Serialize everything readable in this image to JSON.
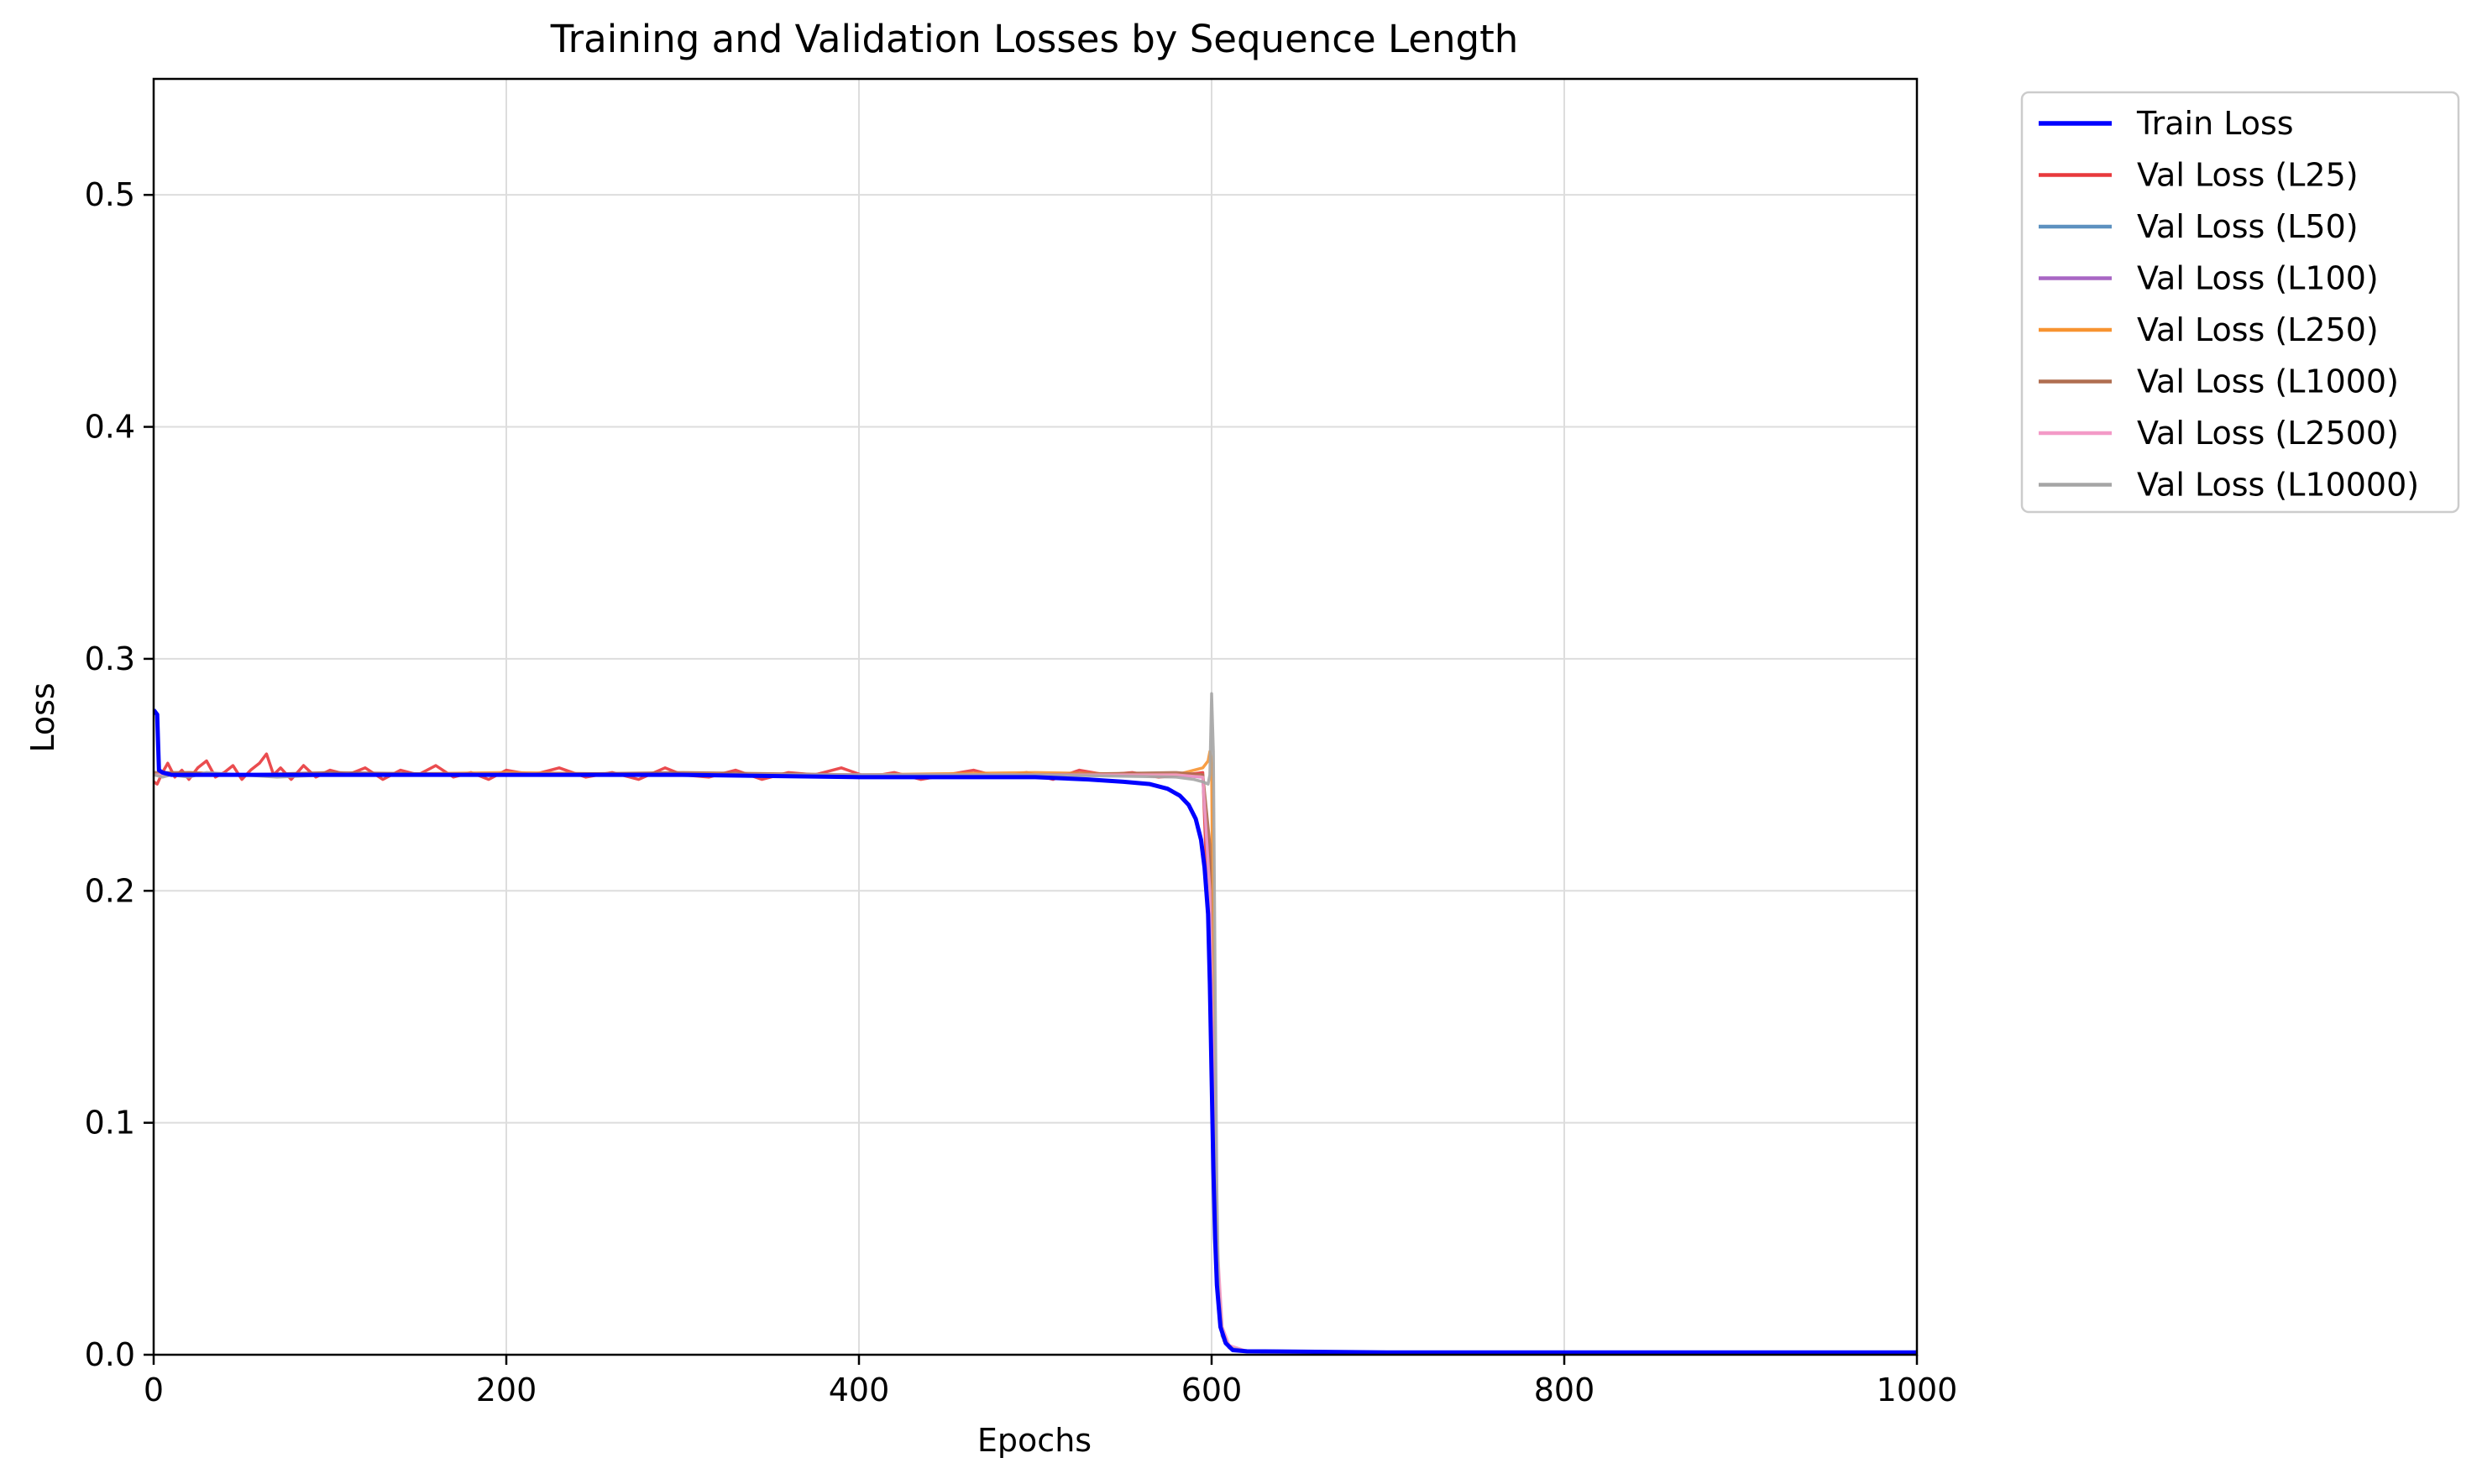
{
  "chart_data": {
    "type": "line",
    "title": "Training and Validation Losses by Sequence Length",
    "xlabel": "Epochs",
    "ylabel": "Loss",
    "xlim": [
      0,
      1000
    ],
    "ylim": [
      0,
      0.55
    ],
    "xticks": [
      0,
      200,
      400,
      600,
      800,
      1000
    ],
    "yticks": [
      0.0,
      0.1,
      0.2,
      0.3,
      0.4,
      0.5
    ],
    "xtick_labels": [
      "0",
      "200",
      "400",
      "600",
      "800",
      "1000"
    ],
    "ytick_labels": [
      "0.0",
      "0.1",
      "0.2",
      "0.3",
      "0.4",
      "0.5"
    ],
    "grid": true,
    "legend_position": "outside-top-right",
    "series": [
      {
        "name": "Train Loss",
        "color": "#0000ff",
        "x": [
          0,
          2,
          3,
          5,
          10,
          50,
          100,
          200,
          300,
          400,
          450,
          500,
          530,
          550,
          565,
          575,
          582,
          587,
          591,
          594,
          596,
          598,
          599,
          600,
          601,
          602,
          603,
          605,
          608,
          612,
          620,
          700,
          800,
          900,
          1000
        ],
        "y": [
          0.278,
          0.276,
          0.252,
          0.251,
          0.25,
          0.25,
          0.25,
          0.25,
          0.25,
          0.249,
          0.249,
          0.249,
          0.248,
          0.247,
          0.246,
          0.244,
          0.241,
          0.237,
          0.231,
          0.222,
          0.21,
          0.19,
          0.16,
          0.12,
          0.08,
          0.05,
          0.03,
          0.012,
          0.005,
          0.002,
          0.0015,
          0.001,
          0.001,
          0.001,
          0.001
        ]
      },
      {
        "name": "Val Loss (L25)",
        "color": "#e8393c",
        "x": [
          0,
          2,
          5,
          8,
          12,
          16,
          20,
          25,
          30,
          35,
          40,
          45,
          50,
          55,
          60,
          64,
          68,
          72,
          78,
          85,
          92,
          100,
          110,
          120,
          130,
          140,
          150,
          160,
          170,
          180,
          190,
          200,
          215,
          230,
          245,
          260,
          275,
          290,
          300,
          315,
          330,
          345,
          360,
          375,
          390,
          405,
          420,
          435,
          450,
          465,
          480,
          495,
          510,
          525,
          540,
          555,
          570,
          585,
          595,
          600,
          603,
          606,
          610,
          620,
          700,
          800,
          900,
          1000
        ],
        "y": [
          0.247,
          0.246,
          0.251,
          0.255,
          0.249,
          0.252,
          0.248,
          0.253,
          0.256,
          0.249,
          0.251,
          0.254,
          0.248,
          0.252,
          0.255,
          0.259,
          0.25,
          0.253,
          0.248,
          0.254,
          0.249,
          0.252,
          0.25,
          0.253,
          0.248,
          0.252,
          0.25,
          0.254,
          0.249,
          0.251,
          0.248,
          0.252,
          0.25,
          0.253,
          0.249,
          0.251,
          0.248,
          0.253,
          0.25,
          0.249,
          0.252,
          0.248,
          0.251,
          0.25,
          0.253,
          0.249,
          0.251,
          0.248,
          0.25,
          0.252,
          0.249,
          0.251,
          0.248,
          0.252,
          0.25,
          0.251,
          0.249,
          0.25,
          0.251,
          0.15,
          0.04,
          0.01,
          0.003,
          0.0015,
          0.001,
          0.001,
          0.001,
          0.001
        ]
      },
      {
        "name": "Val Loss (L50)",
        "color": "#5d91c0",
        "x": [
          0,
          20,
          50,
          100,
          200,
          300,
          400,
          500,
          580,
          595,
          599,
          601,
          603,
          606,
          610,
          620,
          700,
          800,
          900,
          1000
        ],
        "y": [
          0.25,
          0.25,
          0.25,
          0.25,
          0.25,
          0.25,
          0.25,
          0.25,
          0.25,
          0.249,
          0.2,
          0.09,
          0.03,
          0.008,
          0.003,
          0.0015,
          0.001,
          0.001,
          0.001,
          0.001
        ]
      },
      {
        "name": "Val Loss (L100)",
        "color": "#a866c4",
        "x": [
          0,
          20,
          50,
          100,
          200,
          300,
          400,
          500,
          580,
          595,
          599,
          601,
          603,
          606,
          610,
          620,
          700,
          800,
          900,
          1000
        ],
        "y": [
          0.25,
          0.25,
          0.25,
          0.25,
          0.25,
          0.25,
          0.25,
          0.25,
          0.25,
          0.249,
          0.21,
          0.1,
          0.035,
          0.009,
          0.003,
          0.0015,
          0.001,
          0.001,
          0.001,
          0.001
        ]
      },
      {
        "name": "Val Loss (L250)",
        "color": "#f79331",
        "x": [
          0,
          20,
          50,
          100,
          200,
          300,
          400,
          500,
          580,
          590,
          595,
          598,
          599,
          600,
          601,
          602,
          604,
          607,
          610,
          620,
          700,
          800,
          900,
          1000
        ],
        "y": [
          0.25,
          0.251,
          0.25,
          0.25,
          0.251,
          0.25,
          0.25,
          0.251,
          0.25,
          0.252,
          0.253,
          0.256,
          0.26,
          0.255,
          0.15,
          0.06,
          0.02,
          0.006,
          0.003,
          0.0015,
          0.001,
          0.001,
          0.001,
          0.001
        ]
      },
      {
        "name": "Val Loss (L1000)",
        "color": "#b06e51",
        "x": [
          0,
          20,
          50,
          100,
          200,
          300,
          400,
          500,
          580,
          595,
          599,
          601,
          603,
          606,
          610,
          620,
          700,
          800,
          900,
          1000
        ],
        "y": [
          0.251,
          0.251,
          0.25,
          0.251,
          0.25,
          0.251,
          0.25,
          0.25,
          0.251,
          0.25,
          0.22,
          0.11,
          0.04,
          0.01,
          0.003,
          0.0015,
          0.001,
          0.001,
          0.001,
          0.001
        ]
      },
      {
        "name": "Val Loss (L2500)",
        "color": "#f39ac7",
        "x": [
          0,
          20,
          50,
          100,
          200,
          300,
          400,
          500,
          580,
          595,
          599,
          601,
          603,
          606,
          610,
          620,
          700,
          800,
          900,
          1000
        ],
        "y": [
          0.25,
          0.25,
          0.25,
          0.25,
          0.25,
          0.25,
          0.25,
          0.25,
          0.25,
          0.249,
          0.2,
          0.12,
          0.05,
          0.012,
          0.004,
          0.0015,
          0.001,
          0.001,
          0.001,
          0.001
        ]
      },
      {
        "name": "Val Loss (L10000)",
        "color": "#a5a5a5",
        "x": [
          0,
          5,
          10,
          20,
          30,
          50,
          70,
          100,
          150,
          200,
          300,
          400,
          500,
          580,
          590,
          595,
          598,
          599,
          600,
          601,
          602,
          603,
          604,
          606,
          610,
          620,
          700,
          800,
          900,
          1000
        ],
        "y": [
          0.25,
          0.249,
          0.25,
          0.249,
          0.251,
          0.25,
          0.249,
          0.25,
          0.25,
          0.25,
          0.25,
          0.25,
          0.25,
          0.249,
          0.248,
          0.247,
          0.246,
          0.25,
          0.285,
          0.26,
          0.16,
          0.07,
          0.025,
          0.008,
          0.003,
          0.0015,
          0.001,
          0.001,
          0.001,
          0.001
        ]
      }
    ]
  }
}
